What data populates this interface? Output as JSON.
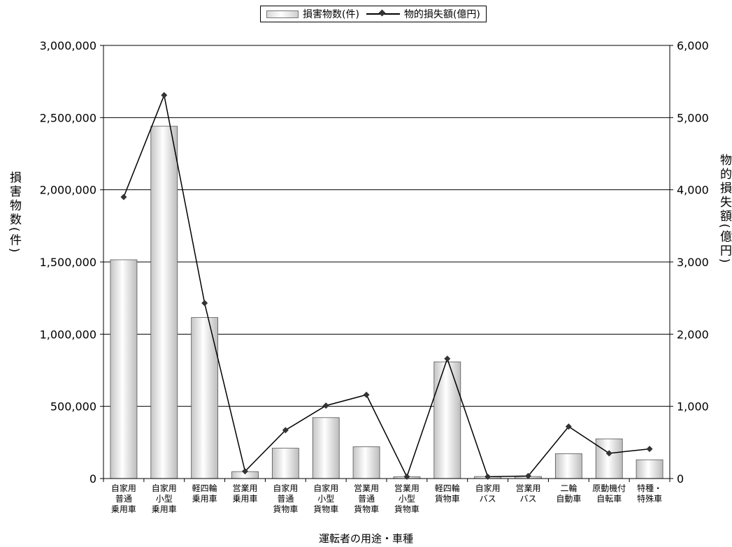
{
  "chart_data": {
    "type": "bar+line",
    "xlabel": "運転者の用途・車種",
    "categories": [
      [
        "自家用",
        "普通",
        "乗用車"
      ],
      [
        "自家用",
        "小型",
        "乗用車"
      ],
      [
        "軽四輪",
        "乗用車"
      ],
      [
        "営業用",
        "乗用車"
      ],
      [
        "自家用",
        "普通",
        "貨物車"
      ],
      [
        "自家用",
        "小型",
        "貨物車"
      ],
      [
        "営業用",
        "普通",
        "貨物車"
      ],
      [
        "営業用",
        "小型",
        "貨物車"
      ],
      [
        "軽四輪",
        "貨物車"
      ],
      [
        "自家用",
        "バス"
      ],
      [
        "営業用",
        "バス"
      ],
      [
        "二輪",
        "自動車"
      ],
      [
        "原動機付",
        "自転車"
      ],
      [
        "特種・",
        "特殊車"
      ]
    ],
    "series": [
      {
        "name": "損害物数(件)",
        "type": "bar",
        "axis": "left",
        "values": [
          1515000,
          2440000,
          1115000,
          48000,
          210000,
          422000,
          220000,
          12000,
          808000,
          14000,
          14000,
          172000,
          275000,
          130000
        ]
      },
      {
        "name": "物的損失額(億円)",
        "type": "line",
        "axis": "right",
        "values": [
          3900,
          5310,
          2430,
          100,
          670,
          1010,
          1160,
          25,
          1660,
          25,
          35,
          720,
          350,
          410
        ]
      }
    ],
    "ylabel_left": "損害物数(件)",
    "ylabel_right": "物的損失額(億円)",
    "ylim_left": [
      0,
      3000000
    ],
    "ylim_right": [
      0,
      6000
    ],
    "yticks_left": [
      "0",
      "500,000",
      "1,000,000",
      "1,500,000",
      "2,000,000",
      "2,500,000",
      "3,000,000"
    ],
    "yticks_right": [
      "0",
      "1,000",
      "2,000",
      "3,000",
      "4,000",
      "5,000",
      "6,000"
    ],
    "grid": true,
    "legend_position": "top-center",
    "colors": {
      "bar_edge": "#555555",
      "bar_light": "#ffffff",
      "bar_dark": "#bdbdbd",
      "line": "#000000",
      "marker": "#333333"
    }
  }
}
